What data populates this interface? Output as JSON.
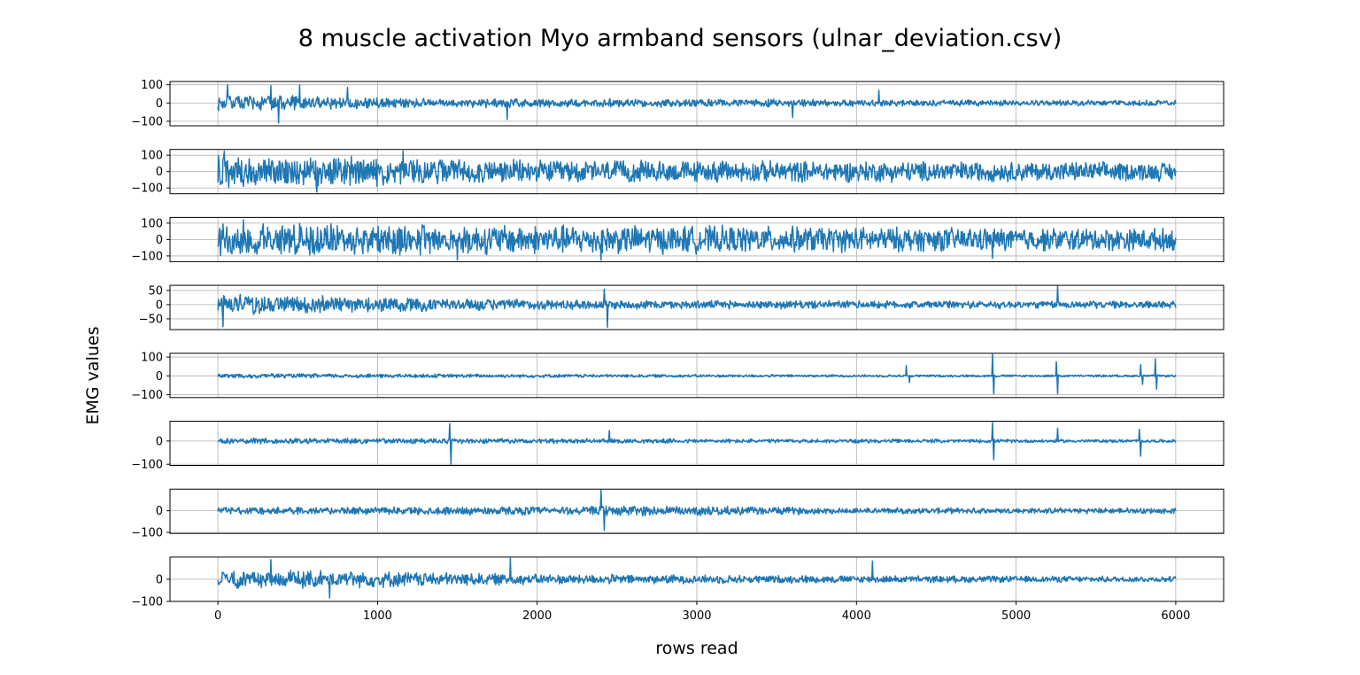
{
  "chart_data": {
    "type": "line",
    "title": "8 muscle activation Myo armband sensors (ulnar_deviation.csv)",
    "xlabel": "rows read",
    "ylabel": "EMG values",
    "xlim": [
      -300,
      6300
    ],
    "x_ticks": [
      "0",
      "1000",
      "2000",
      "3000",
      "4000",
      "5000",
      "6000"
    ],
    "x_range": [
      0,
      6000
    ],
    "grid": true,
    "line_color": "#1f77b4",
    "series": [
      {
        "ylim": [
          -125,
          118
        ],
        "yticks": [
          "100",
          "0",
          "−100"
        ],
        "ytick_values": [
          100,
          0,
          -100
        ],
        "amplitude": [
          [
            0,
            45
          ],
          [
            700,
            40
          ],
          [
            1200,
            28
          ],
          [
            2000,
            26
          ],
          [
            3500,
            22
          ],
          [
            4500,
            18
          ],
          [
            6000,
            16
          ]
        ],
        "spikes": [
          [
            60,
            100
          ],
          [
            330,
            95
          ],
          [
            380,
            -110
          ],
          [
            510,
            100
          ],
          [
            810,
            85
          ],
          [
            1810,
            -90
          ],
          [
            3600,
            -80
          ],
          [
            4140,
            70
          ]
        ]
      },
      {
        "ylim": [
          -135,
          135
        ],
        "yticks": [
          "100",
          "0",
          "−100"
        ],
        "ytick_values": [
          100,
          0,
          -100
        ],
        "amplitude": [
          [
            0,
            110
          ],
          [
            1000,
            95
          ],
          [
            2000,
            75
          ],
          [
            4000,
            70
          ],
          [
            6000,
            62
          ]
        ],
        "spikes": [
          [
            40,
            125
          ],
          [
            620,
            -125
          ],
          [
            1160,
            125
          ]
        ]
      },
      {
        "ylim": [
          -135,
          135
        ],
        "yticks": [
          "100",
          "0",
          "−100"
        ],
        "ytick_values": [
          100,
          0,
          -100
        ],
        "amplitude": [
          [
            0,
            110
          ],
          [
            2500,
            95
          ],
          [
            4500,
            80
          ],
          [
            6000,
            75
          ]
        ],
        "spikes": [
          [
            160,
            120
          ],
          [
            1500,
            -125
          ],
          [
            2400,
            -125
          ],
          [
            4850,
            -115
          ]
        ]
      },
      {
        "ylim": [
          -88,
          68
        ],
        "yticks": [
          "50",
          "0",
          "−50"
        ],
        "ytick_values": [
          50,
          0,
          -50
        ],
        "amplitude": [
          [
            0,
            42
          ],
          [
            1000,
            28
          ],
          [
            2000,
            20
          ],
          [
            3000,
            16
          ],
          [
            6000,
            14
          ]
        ],
        "spikes": [
          [
            30,
            -78
          ],
          [
            2420,
            55
          ],
          [
            2440,
            -80
          ],
          [
            5260,
            65
          ]
        ]
      },
      {
        "ylim": [
          -115,
          120
        ],
        "yticks": [
          "100",
          "0",
          "−100"
        ],
        "ytick_values": [
          100,
          0,
          -100
        ],
        "amplitude": [
          [
            0,
            14
          ],
          [
            2000,
            10
          ],
          [
            4000,
            7
          ],
          [
            6000,
            6
          ]
        ],
        "spikes": [
          [
            4310,
            55
          ],
          [
            4330,
            -35
          ],
          [
            4850,
            115
          ],
          [
            4860,
            -95
          ],
          [
            5250,
            75
          ],
          [
            5260,
            -95
          ],
          [
            5780,
            60
          ],
          [
            5790,
            -45
          ],
          [
            5870,
            90
          ],
          [
            5880,
            -70
          ]
        ]
      },
      {
        "ylim": [
          -105,
          85
        ],
        "yticks": [
          "0",
          "−100"
        ],
        "ytick_values": [
          0,
          -100
        ],
        "amplitude": [
          [
            0,
            14
          ],
          [
            3000,
            10
          ],
          [
            6000,
            7
          ]
        ],
        "spikes": [
          [
            1450,
            75
          ],
          [
            1460,
            -100
          ],
          [
            2450,
            45
          ],
          [
            4850,
            80
          ],
          [
            4860,
            -80
          ],
          [
            5260,
            55
          ],
          [
            5770,
            50
          ],
          [
            5780,
            -65
          ]
        ]
      },
      {
        "ylim": [
          -105,
          100
        ],
        "yticks": [
          "0",
          "−100"
        ],
        "ytick_values": [
          0,
          -100
        ],
        "amplitude": [
          [
            0,
            18
          ],
          [
            2300,
            22
          ],
          [
            2500,
            28
          ],
          [
            4000,
            15
          ],
          [
            6000,
            14
          ]
        ],
        "spikes": [
          [
            2400,
            95
          ],
          [
            2420,
            -90
          ]
        ]
      },
      {
        "ylim": [
          -100,
          100
        ],
        "yticks": [
          "0",
          "−100"
        ],
        "ytick_values": [
          0,
          -100
        ],
        "amplitude": [
          [
            0,
            45
          ],
          [
            1000,
            40
          ],
          [
            2000,
            25
          ],
          [
            4000,
            18
          ],
          [
            6000,
            14
          ]
        ],
        "spikes": [
          [
            330,
            88
          ],
          [
            700,
            -85
          ],
          [
            1830,
            95
          ],
          [
            4100,
            82
          ]
        ]
      }
    ]
  }
}
